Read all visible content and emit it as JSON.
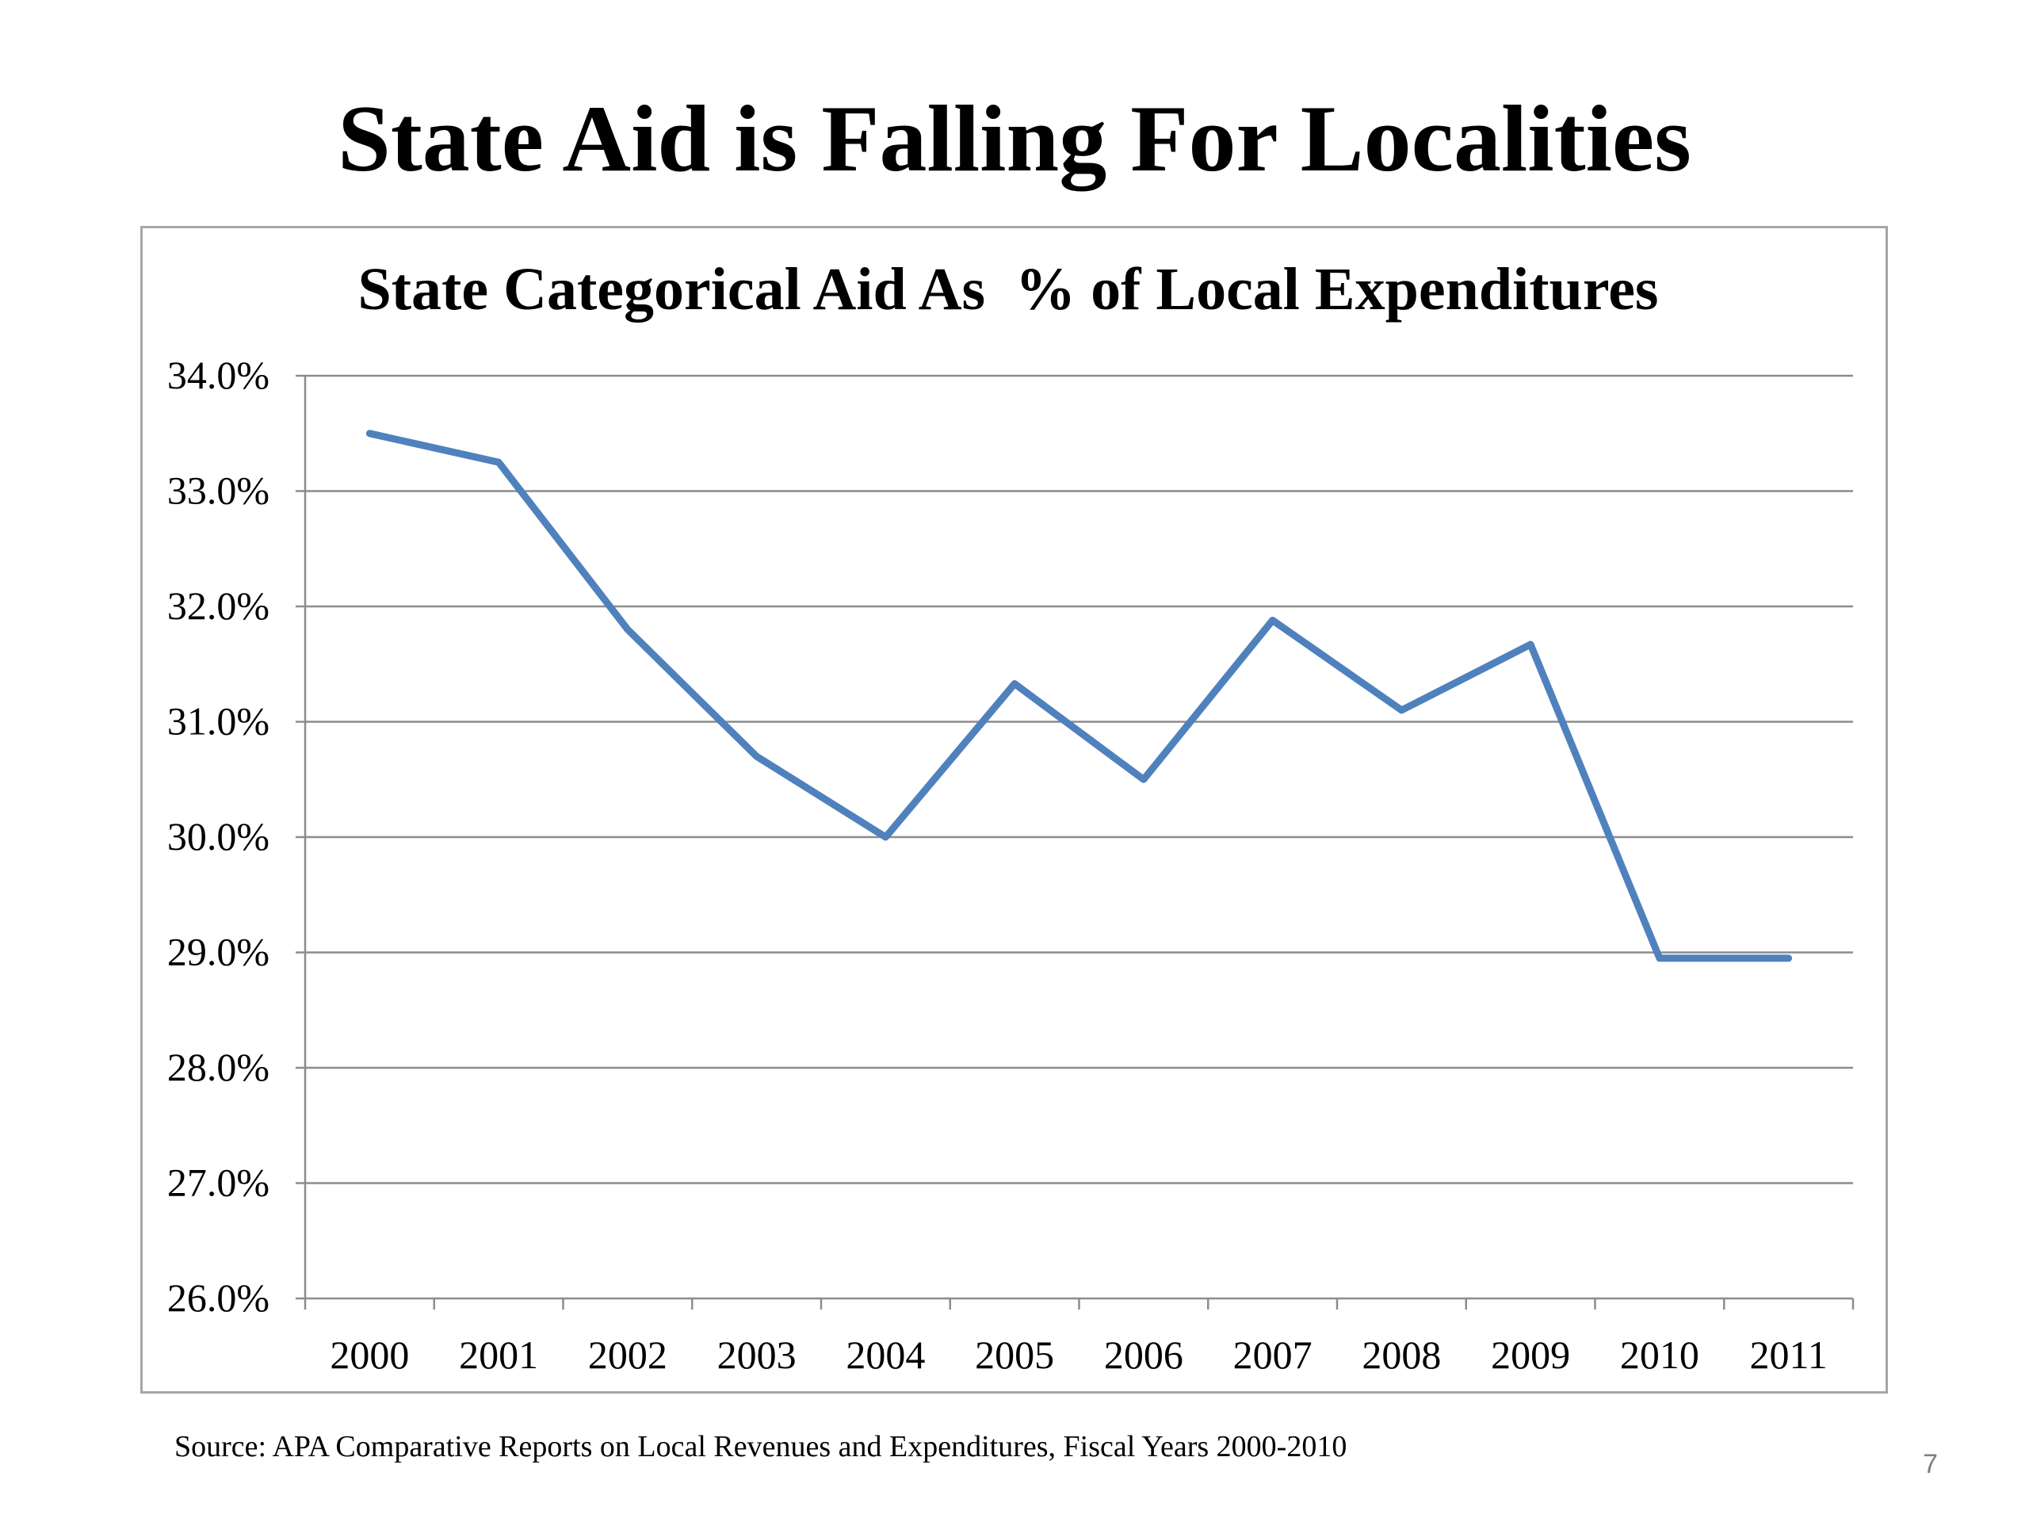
{
  "slide": {
    "title": "State Aid is Falling For Localities",
    "source": "Source: APA  Comparative Reports on Local Revenues and Expenditures, Fiscal Years 2000-2010",
    "page_number": "7"
  },
  "chart_data": {
    "type": "line",
    "title": "State Categorical Aid As  % of Local Expenditures",
    "xlabel": "",
    "ylabel": "",
    "categories": [
      "2000",
      "2001",
      "2002",
      "2003",
      "2004",
      "2005",
      "2006",
      "2007",
      "2008",
      "2009",
      "2010",
      "2011"
    ],
    "series": [
      {
        "values": [
          33.5,
          33.25,
          31.8,
          30.7,
          30.0,
          31.33,
          30.5,
          31.88,
          31.1,
          31.67,
          28.95,
          28.95
        ],
        "color": "#4f81bd"
      }
    ],
    "ylim": [
      26.0,
      34.0
    ],
    "y_ticks": [
      "26.0%",
      "27.0%",
      "28.0%",
      "29.0%",
      "30.0%",
      "31.0%",
      "32.0%",
      "33.0%",
      "34.0%"
    ],
    "grid": true,
    "legend": "none"
  }
}
